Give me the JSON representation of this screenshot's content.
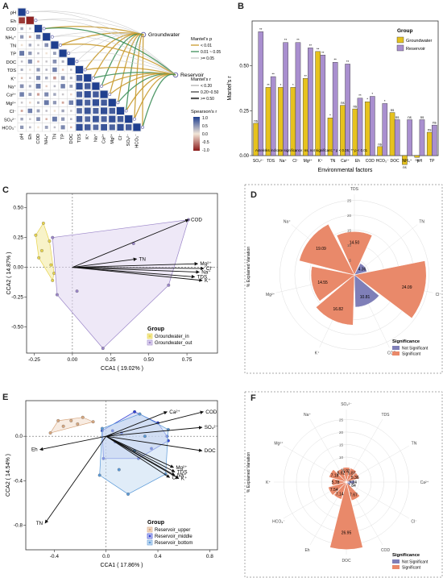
{
  "panels": {
    "A": "A",
    "B": "B",
    "C": "C",
    "D": "D",
    "E": "E",
    "F": "F"
  },
  "chart_data": [
    {
      "id": "A",
      "type": "heatmap",
      "variables": [
        "pH",
        "Eh",
        "COD",
        "NH₄⁺",
        "TN",
        "TP",
        "DOC",
        "TDS",
        "K⁺",
        "Na⁺",
        "Ca²⁺",
        "Mg²⁺",
        "Cl⁻",
        "SO₄²⁻",
        "HCO₃⁻"
      ],
      "targets": [
        "Groundwater",
        "Reservoir"
      ],
      "legend_mantel_p_title": "Mantel's p",
      "legend_mantel_p": [
        "< 0.01",
        "0.01 ~ 0.05",
        ">= 0.05"
      ],
      "legend_mantel_p_colors": [
        "#c89a2e",
        "#3f8f5a",
        "#c9c9c9"
      ],
      "legend_mantel_r_title": "Mantel's r",
      "legend_mantel_r": [
        "< 0.20",
        "0.20~0.50",
        ">= 0.50"
      ],
      "legend_spearman_title": "Spearson's r",
      "legend_spearman_ticks": [
        "1.0",
        "0.5",
        "0.0",
        "-0.5",
        "-1.0"
      ],
      "colorscale": [
        "#8b1a1a",
        "#f2e6d8",
        "#1f3f8f"
      ]
    },
    {
      "id": "B",
      "type": "bar",
      "title": "",
      "xlabel": "Environmental factors",
      "ylabel": "Mantel's r",
      "ylim": [
        0,
        0.75
      ],
      "yticks": [
        "0.00",
        "0.25",
        "0.50"
      ],
      "categories": [
        "SO₄²⁻",
        "TDS",
        "Na⁺",
        "Cl⁻",
        "Mg²⁺",
        "K⁺",
        "TN",
        "Ca²⁺",
        "Eh",
        "COD",
        "HCO₃⁻",
        "DOC",
        "NH₄⁺",
        "pH",
        "TP"
      ],
      "series": [
        {
          "name": "Groundwater",
          "color": "#e6c21e",
          "values": [
            0.18,
            0.38,
            0.38,
            0.38,
            0.43,
            0.58,
            0.21,
            0.28,
            0.26,
            0.3,
            0.05,
            0.24,
            -0.05,
            -0.01,
            0.13
          ],
          "signif": [
            "ns",
            "**",
            "*",
            "*",
            "**",
            "**",
            "*",
            "ns",
            "ns",
            "*",
            "ns",
            "ns",
            "ns",
            "ns",
            "ns"
          ]
        },
        {
          "name": "Reservoir",
          "color": "#a98fcf",
          "values": [
            0.69,
            0.44,
            0.63,
            0.63,
            0.6,
            0.56,
            0.52,
            0.51,
            0.32,
            0.33,
            0.29,
            0.2,
            0.2,
            0.2,
            0.17
          ],
          "signif": [
            "**",
            "**",
            "**",
            "**",
            "**",
            "**",
            "**",
            "**",
            "**",
            "*",
            "*",
            "ns",
            "ns",
            "ns",
            "ns"
          ]
        }
      ],
      "legend_title": "Group",
      "note": "Asterisks indicate significance: ns, not significant; * p < 0.05; ** p < 0.01"
    },
    {
      "id": "C",
      "type": "scatter",
      "xlabel": "CCA1 ( 19.02% )",
      "ylabel": "CCA2 ( 14.87% )",
      "xlim": [
        -0.3,
        0.95
      ],
      "ylim": [
        -0.72,
        0.62
      ],
      "xticks": [
        -0.25,
        0.0,
        0.25,
        0.5,
        0.75
      ],
      "xtick_labels": [
        "-0.25",
        "0.00",
        "0.25",
        "0.50",
        "0.75"
      ],
      "yticks": [
        0.5,
        0.25,
        0.0,
        -0.25,
        -0.5
      ],
      "ytick_labels": [
        "0.50",
        "0.25",
        "0.00",
        "-0.25",
        "-0.50"
      ],
      "legend_title": "Group",
      "series": [
        {
          "name": "Groundwater_in",
          "color": "#e8d44d",
          "fill": "#f3ea9c",
          "points": [
            [
              -0.19,
              0.37
            ],
            [
              -0.24,
              0.27
            ],
            [
              -0.22,
              0.08
            ],
            [
              -0.15,
              0.22
            ],
            [
              -0.14,
              0.02
            ],
            [
              -0.12,
              -0.05
            ],
            [
              -0.13,
              -0.11
            ],
            [
              -0.2,
              0.14
            ]
          ]
        },
        {
          "name": "Groundwater_out",
          "color": "#9b86c9",
          "fill": "#e0d6f0",
          "points": [
            [
              -0.1,
              -0.23
            ],
            [
              0.03,
              -0.2
            ],
            [
              0.2,
              -0.68
            ],
            [
              0.63,
              -0.15
            ],
            [
              0.76,
              0.4
            ],
            [
              -0.13,
              0.25
            ],
            [
              0.4,
              0.2
            ]
          ]
        }
      ],
      "arrows": [
        {
          "label": "COD",
          "x": 0.76,
          "y": 0.4
        },
        {
          "label": "TN",
          "x": 0.42,
          "y": 0.07
        },
        {
          "label": "Mg²⁺",
          "x": 0.82,
          "y": 0.03
        },
        {
          "label": "Cl⁻",
          "x": 0.86,
          "y": -0.01
        },
        {
          "label": "Na⁺",
          "x": 0.83,
          "y": -0.04
        },
        {
          "label": "TDS",
          "x": 0.8,
          "y": -0.08
        },
        {
          "label": "K⁺",
          "x": 0.85,
          "y": -0.11
        }
      ]
    },
    {
      "id": "D",
      "type": "bar",
      "subtype": "polar",
      "ylabel": "% Explained Variation",
      "rticks": [
        "5",
        "10",
        "15",
        "20",
        "25"
      ],
      "categories": [
        "TDS",
        "TN",
        "Cl⁻",
        "COD",
        "K⁺",
        "Mg²⁺",
        "Na⁺"
      ],
      "values": [
        14.5,
        4.36,
        24.09,
        10.81,
        16.82,
        14.55,
        19.09
      ],
      "value_labels": [
        "14.50",
        "4.36",
        "24.09",
        "10.81",
        "16.82",
        "14.55",
        "19.09"
      ],
      "significance": [
        "Significant",
        "Not Significant",
        "Significant",
        "Not Significant",
        "Significant",
        "Significant",
        "Significant"
      ],
      "legend_title": "Significance",
      "legend": [
        "Not Significant",
        "Significant"
      ],
      "colors": {
        "Not Significant": "#7f7fb8",
        "Significant": "#e9896a"
      }
    },
    {
      "id": "E",
      "type": "scatter",
      "xlabel": "CCA1 ( 17.86% )",
      "ylabel": "CCA2 ( 14.54% )",
      "xlim": [
        -0.62,
        0.86
      ],
      "ylim": [
        -1.02,
        0.32
      ],
      "xticks": [
        -0.4,
        0.0,
        0.4,
        0.8
      ],
      "xtick_labels": [
        "-0.4",
        "0.0",
        "0.4",
        "0.8"
      ],
      "yticks": [
        0.0,
        -0.4,
        -0.8
      ],
      "ytick_labels": [
        "0.0",
        "-0.4",
        "-0.8"
      ],
      "legend_title": "Group",
      "series": [
        {
          "name": "Reservoir_upper",
          "color": "#d8a880",
          "fill": "#f3dccb",
          "points": [
            [
              -0.43,
              0.03
            ],
            [
              -0.37,
              0.14
            ],
            [
              -0.27,
              0.14
            ],
            [
              -0.18,
              0.17
            ],
            [
              -0.1,
              0.13
            ],
            [
              -0.22,
              0.11
            ],
            [
              -0.33,
              0.09
            ]
          ]
        },
        {
          "name": "Reservoir_middle",
          "color": "#2f3fd6",
          "fill": "#c2c8ef",
          "points": [
            [
              -0.03,
              0.05
            ],
            [
              0.05,
              0.05
            ],
            [
              0.12,
              0.03
            ],
            [
              0.22,
              0.22
            ],
            [
              0.4,
              0.12
            ],
            [
              0.47,
              0.0
            ],
            [
              0.48,
              -0.04
            ],
            [
              0.35,
              -0.11
            ],
            [
              0.07,
              -0.05
            ],
            [
              -0.02,
              -0.2
            ],
            [
              0.25,
              -0.2
            ]
          ]
        },
        {
          "name": "Reservoir_bottom",
          "color": "#5b9ad8",
          "fill": "#c7ddf2",
          "points": [
            [
              -0.03,
              0.07
            ],
            [
              0.26,
              0.2
            ],
            [
              0.48,
              0.06
            ],
            [
              0.46,
              -0.34
            ],
            [
              0.17,
              -0.52
            ],
            [
              -0.05,
              -0.35
            ],
            [
              0.22,
              -0.13
            ],
            [
              0.3,
              0.0
            ],
            [
              0.1,
              -0.3
            ]
          ]
        }
      ],
      "arrows": [
        {
          "label": "Ca²⁺",
          "x": 0.47,
          "y": 0.22
        },
        {
          "label": "COD",
          "x": 0.75,
          "y": 0.22
        },
        {
          "label": "SO₄²⁻",
          "x": 0.74,
          "y": 0.08
        },
        {
          "label": "DOC",
          "x": 0.74,
          "y": -0.13
        },
        {
          "label": "Eh",
          "x": -0.51,
          "y": -0.12
        },
        {
          "label": "Mg²⁺",
          "x": 0.52,
          "y": -0.28
        },
        {
          "label": "TDS",
          "x": 0.53,
          "y": -0.32
        },
        {
          "label": "Na⁺",
          "x": 0.53,
          "y": -0.35
        },
        {
          "label": "Cl⁻",
          "x": 0.49,
          "y": -0.37
        },
        {
          "label": "K⁺",
          "x": 0.56,
          "y": -0.38
        },
        {
          "label": "TN",
          "x": -0.47,
          "y": -0.78
        }
      ]
    },
    {
      "id": "F",
      "type": "bar",
      "subtype": "polar",
      "ylabel": "% Explained Variation",
      "rticks": [
        "5",
        "10",
        "15",
        "20",
        "25"
      ],
      "categories": [
        "SO₄²⁻",
        "TDS",
        "TN",
        "Ca²⁺",
        "Cl⁻",
        "COD",
        "DOC",
        "Eh",
        "HCO₃⁻",
        "K⁺",
        "Mg²⁺",
        "Na⁺"
      ],
      "values": [
        5.91,
        5.81,
        5.36,
        3.24,
        1.84,
        7.67,
        26.95,
        7.14,
        7.54,
        5.78,
        7.18,
        5.62
      ],
      "value_labels": [
        "5.91",
        "5.81",
        "5.36",
        "3.24",
        "1.84",
        "7.67",
        "26.95",
        "7.14",
        "7.54",
        "5.78",
        "7.18",
        "5.62"
      ],
      "significance": [
        "Significant",
        "Significant",
        "Significant",
        "Not Significant",
        "Not Significant",
        "Significant",
        "Significant",
        "Significant",
        "Significant",
        "Significant",
        "Significant",
        "Significant"
      ],
      "legend_title": "Significance",
      "legend": [
        "Not Significant",
        "Significant"
      ],
      "colors": {
        "Not Significant": "#7f7fb8",
        "Significant": "#e9896a"
      }
    }
  ]
}
